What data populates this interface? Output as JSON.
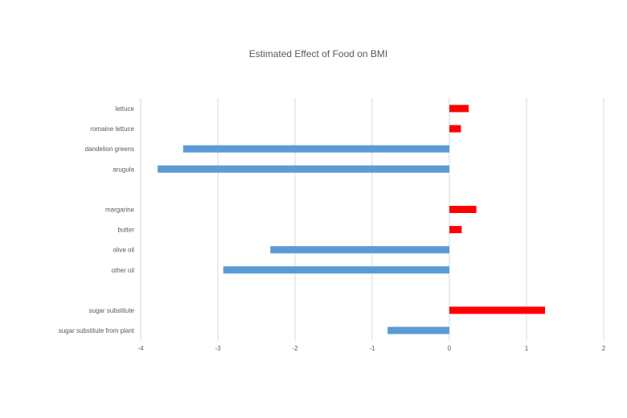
{
  "chart_data": {
    "type": "bar",
    "orientation": "horizontal",
    "title": "Estimated Effect of Food on BMI",
    "xlabel": "",
    "ylabel": "",
    "xlim": [
      -4,
      2
    ],
    "x_ticks": [
      "-4",
      "-3",
      "-2",
      "-1",
      "0",
      "1",
      "2"
    ],
    "grid": true,
    "categories": [
      "lettuce",
      "romaine lettuce",
      "dandelion greens",
      "arugula",
      "",
      "margarine",
      "butter",
      "olive oil",
      "other oil",
      "",
      "sugar substitute",
      "sugar substitute from plant"
    ],
    "values": [
      0.25,
      0.15,
      -3.45,
      -3.78,
      null,
      0.35,
      0.16,
      -2.32,
      -2.93,
      null,
      1.24,
      -0.8
    ],
    "colors": {
      "positive": "#ff0000",
      "negative": "#5b9bd5",
      "grid": "#d9d9d9",
      "text": "#595959"
    }
  }
}
